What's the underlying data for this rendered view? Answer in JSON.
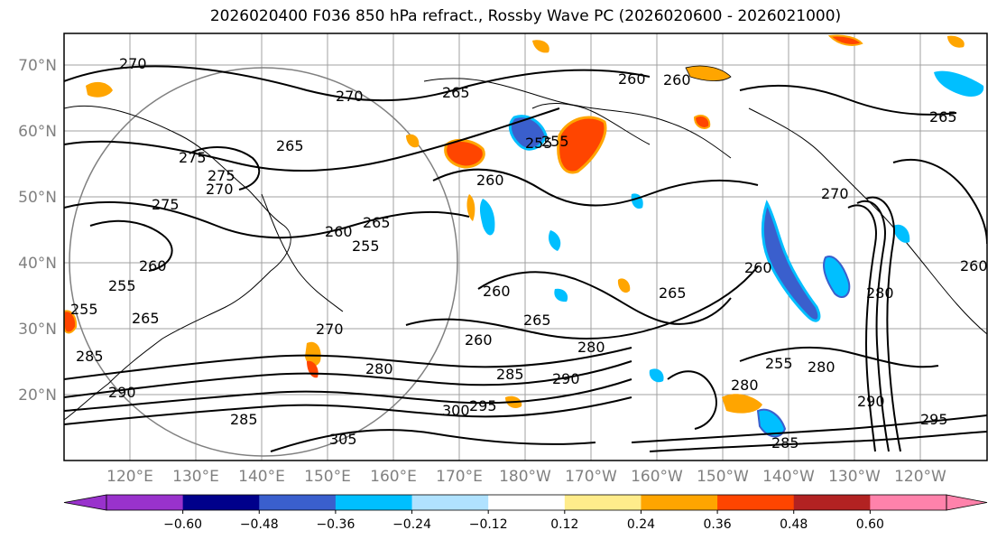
{
  "title": "2026020400 F036 850 hPa refract., Rossby Wave PC (2026020600 - 2026021000)",
  "lat_labels": [
    "70°N",
    "60°N",
    "50°N",
    "40°N",
    "30°N",
    "20°N"
  ],
  "lon_labels": [
    "120°E",
    "130°E",
    "140°E",
    "150°E",
    "160°E",
    "170°E",
    "180°W",
    "170°W",
    "160°W",
    "150°W",
    "140°W",
    "130°W",
    "120°W"
  ],
  "colorbar": {
    "ticks": [
      "−0.60",
      "−0.48",
      "−0.36",
      "−0.24",
      "−0.12",
      "0.12",
      "0.24",
      "0.36",
      "0.48",
      "0.60"
    ],
    "colors": [
      "#9932cc",
      "#00008b",
      "#3a5fcd",
      "#00bfff",
      "#b0e2ff",
      "#ffffff",
      "#ffec8b",
      "#ffa500",
      "#ff4500",
      "#b22222",
      "#ff82ab"
    ],
    "under_color": "#9932cc",
    "over_color": "#ff82ab"
  },
  "contour_labels": [
    "270",
    "265",
    "260",
    "270",
    "265",
    "275",
    "270",
    "275",
    "260",
    "265",
    "255",
    "260",
    "260",
    "260",
    "255",
    "255",
    "255",
    "265",
    "260",
    "265",
    "260",
    "265",
    "255",
    "260",
    "270",
    "275",
    "280",
    "285",
    "290",
    "280",
    "295",
    "300",
    "285",
    "280",
    "255",
    "270",
    "265",
    "280",
    "285",
    "290",
    "295",
    "305",
    "285",
    "290",
    "280",
    "260"
  ]
}
